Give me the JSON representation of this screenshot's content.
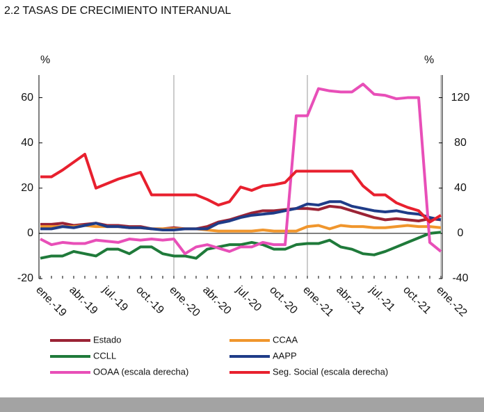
{
  "chart_data": {
    "type": "line",
    "title": "2.2 TASAS DE CRECIMIENTO INTERANUAL",
    "y_label": "%",
    "y2_label": "%",
    "categories": [
      "ene.-19",
      null,
      null,
      "abr.-19",
      null,
      null,
      "jul.-19",
      null,
      null,
      "oct.-19",
      null,
      null,
      "ene.-20",
      null,
      null,
      "abr.-20",
      null,
      null,
      "jul.-20",
      null,
      null,
      "oct.-20",
      null,
      null,
      "ene.-21",
      null,
      null,
      "abr.-21",
      null,
      null,
      "jul.-21",
      null,
      null,
      "oct.-21",
      null,
      null,
      "ene.-22"
    ],
    "ylim": [
      -20,
      70
    ],
    "yticks": [
      -20,
      0,
      20,
      40,
      60
    ],
    "y2lim": [
      -40,
      140
    ],
    "y2ticks": [
      -40,
      0,
      40,
      80,
      120
    ],
    "series": [
      {
        "name": "Estado",
        "color": "#9b2335",
        "values": [
          4,
          4,
          4.5,
          3.5,
          4,
          4.5,
          3.5,
          3.5,
          3,
          3,
          2,
          2,
          2.5,
          2,
          2,
          3,
          5,
          6,
          7.5,
          9,
          10,
          10,
          10.5,
          11,
          11,
          10.5,
          12,
          11.5,
          10,
          8.5,
          7,
          6,
          6.5,
          6,
          5.5,
          6.5,
          6
        ]
      },
      {
        "name": "CCAA",
        "color": "#f0962d",
        "values": [
          3,
          3,
          3,
          3,
          3.5,
          3,
          3,
          3,
          2.5,
          2.5,
          2,
          2,
          2,
          2,
          2,
          1.5,
          1,
          1,
          1,
          1,
          1.5,
          1,
          1,
          1,
          3,
          3.5,
          2,
          3.5,
          3,
          3,
          2.5,
          2.5,
          3,
          3.5,
          3,
          3,
          2.5
        ]
      },
      {
        "name": "CCLL",
        "color": "#1f7a3a",
        "values": [
          -11,
          -10,
          -10,
          -8,
          -9,
          -10,
          -7,
          -7,
          -9,
          -6,
          -6,
          -9,
          -10,
          -10,
          -11,
          -7,
          -6,
          -5,
          -5,
          -4,
          -5,
          -7,
          -7,
          -5,
          -4.5,
          -4.5,
          -3,
          -6,
          -7,
          -9,
          -9.5,
          -8,
          -6,
          -4,
          -2,
          0,
          0.5
        ]
      },
      {
        "name": "AAPP",
        "color": "#1f3c88",
        "values": [
          2,
          2,
          3,
          2.5,
          3.5,
          4.5,
          3,
          3,
          2.5,
          2.5,
          2,
          1.5,
          1.5,
          2,
          2,
          2,
          4.5,
          5.5,
          7,
          8,
          8.5,
          9,
          10,
          11,
          13,
          12.5,
          14,
          14,
          12,
          11,
          10,
          9.5,
          10,
          9,
          8.5,
          7,
          6
        ]
      },
      {
        "name": "OOAA (escala derecha)",
        "color": "#e84fb8",
        "axis": "y2",
        "values": [
          -5,
          -10,
          -8,
          -9,
          -9,
          -6,
          -7,
          -8,
          -5,
          -6,
          -5,
          -6,
          -5,
          -18,
          -12,
          -10,
          -13,
          -16,
          -12,
          -12,
          -8,
          -10,
          -10,
          104,
          104,
          128,
          126,
          125,
          125,
          132,
          123,
          122,
          119,
          120,
          120,
          -8,
          -16
        ]
      },
      {
        "name": "Seg. Social (escala derecha)",
        "color": "#e8202e",
        "axis": "y2",
        "values": [
          50,
          50,
          56,
          63,
          70,
          40,
          44,
          48,
          51,
          54,
          34,
          34,
          34,
          34,
          34,
          30,
          25,
          28,
          41,
          38,
          42,
          43,
          45,
          55,
          55,
          55,
          55,
          55,
          55,
          42,
          34,
          34,
          27,
          23,
          20,
          10,
          16
        ]
      }
    ]
  }
}
